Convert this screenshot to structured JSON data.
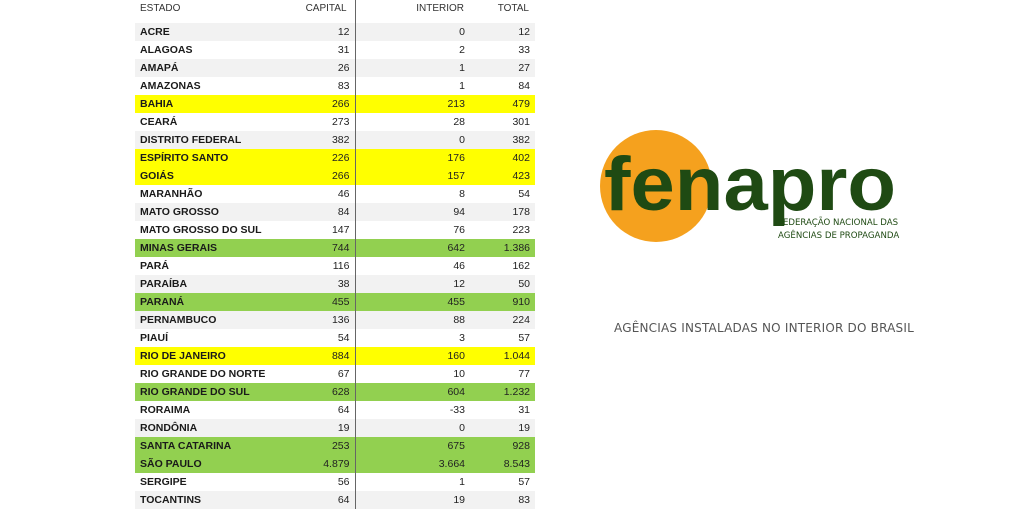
{
  "table": {
    "headers": {
      "estado": "ESTADO",
      "capital": "CAPITAL",
      "interior": "INTERIOR",
      "total": "TOTAL"
    },
    "rows": [
      {
        "estado": "ACRE",
        "capital": "12",
        "interior": "0",
        "total": "12",
        "highlight": "none"
      },
      {
        "estado": "ALAGOAS",
        "capital": "31",
        "interior": "2",
        "total": "33",
        "highlight": "none"
      },
      {
        "estado": "AMAPÁ",
        "capital": "26",
        "interior": "1",
        "total": "27",
        "highlight": "none"
      },
      {
        "estado": "AMAZONAS",
        "capital": "83",
        "interior": "1",
        "total": "84",
        "highlight": "none"
      },
      {
        "estado": "BAHIA",
        "capital": "266",
        "interior": "213",
        "total": "479",
        "highlight": "yellow"
      },
      {
        "estado": "CEARÁ",
        "capital": "273",
        "interior": "28",
        "total": "301",
        "highlight": "none"
      },
      {
        "estado": "DISTRITO FEDERAL",
        "capital": "382",
        "interior": "0",
        "total": "382",
        "highlight": "none"
      },
      {
        "estado": "ESPÍRITO SANTO",
        "capital": "226",
        "interior": "176",
        "total": "402",
        "highlight": "yellow"
      },
      {
        "estado": "GOIÁS",
        "capital": "266",
        "interior": "157",
        "total": "423",
        "highlight": "yellow"
      },
      {
        "estado": "MARANHÃO",
        "capital": "46",
        "interior": "8",
        "total": "54",
        "highlight": "none"
      },
      {
        "estado": "MATO GROSSO",
        "capital": "84",
        "interior": "94",
        "total": "178",
        "highlight": "none"
      },
      {
        "estado": "MATO GROSSO DO SUL",
        "capital": "147",
        "interior": "76",
        "total": "223",
        "highlight": "none"
      },
      {
        "estado": "MINAS GERAIS",
        "capital": "744",
        "interior": "642",
        "total": "1.386",
        "highlight": "green"
      },
      {
        "estado": "PARÁ",
        "capital": "116",
        "interior": "46",
        "total": "162",
        "highlight": "none"
      },
      {
        "estado": "PARAÍBA",
        "capital": "38",
        "interior": "12",
        "total": "50",
        "highlight": "none"
      },
      {
        "estado": "PARANÁ",
        "capital": "455",
        "interior": "455",
        "total": "910",
        "highlight": "green"
      },
      {
        "estado": "PERNAMBUCO",
        "capital": "136",
        "interior": "88",
        "total": "224",
        "highlight": "none"
      },
      {
        "estado": "PIAUÍ",
        "capital": "54",
        "interior": "3",
        "total": "57",
        "highlight": "none"
      },
      {
        "estado": "RIO DE JANEIRO",
        "capital": "884",
        "interior": "160",
        "total": "1.044",
        "highlight": "yellow"
      },
      {
        "estado": "RIO GRANDE DO NORTE",
        "capital": "67",
        "interior": "10",
        "total": "77",
        "highlight": "none"
      },
      {
        "estado": "RIO GRANDE DO SUL",
        "capital": "628",
        "interior": "604",
        "total": "1.232",
        "highlight": "green"
      },
      {
        "estado": "RORAIMA",
        "capital": "64",
        "interior": "-33",
        "total": "31",
        "highlight": "none"
      },
      {
        "estado": "RONDÔNIA",
        "capital": "19",
        "interior": "0",
        "total": "19",
        "highlight": "none"
      },
      {
        "estado": "SANTA CATARINA",
        "capital": "253",
        "interior": "675",
        "total": "928",
        "highlight": "green"
      },
      {
        "estado": "SÃO PAULO",
        "capital": "4.879",
        "interior": "3.664",
        "total": "8.543",
        "highlight": "green"
      },
      {
        "estado": "SERGIPE",
        "capital": "56",
        "interior": "1",
        "total": "57",
        "highlight": "none"
      },
      {
        "estado": "TOCANTINS",
        "capital": "64",
        "interior": "19",
        "total": "83",
        "highlight": "none"
      }
    ]
  },
  "logo": {
    "wordmark": "fenapro",
    "tagline_line1": "FEDERAÇÃO NACIONAL DAS",
    "tagline_line2": "AGÊNCIAS DE PROPAGANDA",
    "colors": {
      "circle": "#f5a11e",
      "text": "#1f4a13"
    }
  },
  "caption": "AGÊNCIAS INSTALADAS NO INTERIOR DO BRASIL",
  "colors": {
    "yellow_highlight": "#ffff00",
    "green_highlight": "#92d050",
    "zebra": "#f2f2f2"
  }
}
